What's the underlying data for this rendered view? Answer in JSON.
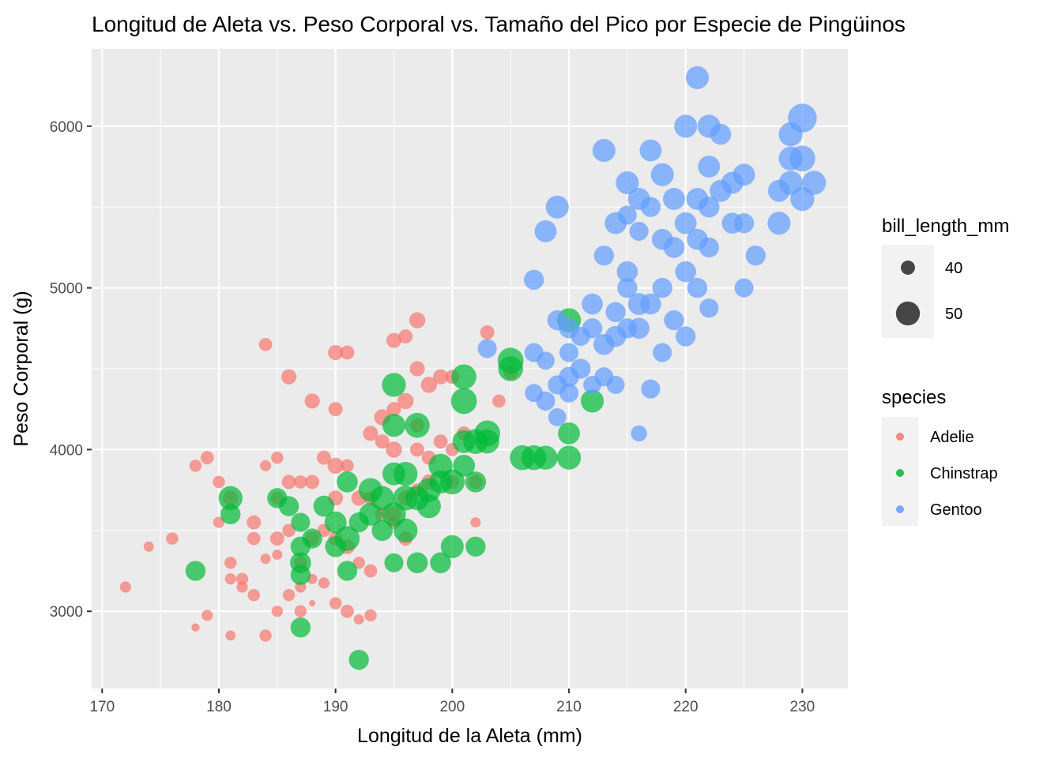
{
  "chart_data": {
    "type": "scatter",
    "title": "Longitud de Aleta vs. Peso Corporal vs. Tamaño del Pico por Especie de Pingüinos",
    "xlabel": "Longitud de la Aleta (mm)",
    "ylabel": "Peso Corporal (g)",
    "xlim": [
      169.1,
      233.9
    ],
    "ylim": [
      2522.5,
      6477.5
    ],
    "xticks": [
      170,
      180,
      190,
      200,
      210,
      220,
      230
    ],
    "yticks": [
      3000,
      4000,
      5000,
      6000
    ],
    "grid": true,
    "size_legend": {
      "title": "bill_length_mm",
      "entries": [
        {
          "label": "40",
          "value": 40
        },
        {
          "label": "50",
          "value": 50
        }
      ]
    },
    "color_legend": {
      "title": "species",
      "entries": [
        {
          "label": "Adelie",
          "color": "#F8766D"
        },
        {
          "label": "Chinstrap",
          "color": "#00BA38"
        },
        {
          "label": "Gentoo",
          "color": "#619CFF"
        }
      ]
    },
    "series": [
      {
        "name": "Adelie",
        "color": "#F8766D",
        "points": [
          [
            172,
            3150,
            37
          ],
          [
            174,
            3400,
            36
          ],
          [
            176,
            3450,
            38
          ],
          [
            178,
            3900,
            38
          ],
          [
            179,
            3950,
            39
          ],
          [
            178,
            2900,
            34
          ],
          [
            179,
            2975,
            37
          ],
          [
            180,
            3800,
            38
          ],
          [
            180,
            3550,
            37
          ],
          [
            181,
            3700,
            41
          ],
          [
            181,
            3300,
            38
          ],
          [
            181,
            3200,
            37
          ],
          [
            182,
            3200,
            38
          ],
          [
            182,
            3150,
            37
          ],
          [
            181,
            2850,
            36
          ],
          [
            183,
            3100,
            38
          ],
          [
            183,
            3450,
            39
          ],
          [
            183,
            3550,
            40
          ],
          [
            184,
            4650,
            39
          ],
          [
            184,
            3900,
            37
          ],
          [
            184,
            3325,
            36
          ],
          [
            184,
            2850,
            38
          ],
          [
            185,
            3950,
            38
          ],
          [
            185,
            3700,
            39
          ],
          [
            185,
            3450,
            40
          ],
          [
            185,
            3350,
            36
          ],
          [
            185,
            3000,
            37
          ],
          [
            186,
            4450,
            41
          ],
          [
            186,
            3100,
            38
          ],
          [
            186,
            3800,
            40
          ],
          [
            186,
            3500,
            39
          ],
          [
            187,
            3800,
            39
          ],
          [
            187,
            3300,
            39
          ],
          [
            187,
            3150,
            37
          ],
          [
            187,
            3000,
            38
          ],
          [
            188,
            4300,
            41
          ],
          [
            188,
            3800,
            40
          ],
          [
            188,
            3450,
            40
          ],
          [
            188,
            3200,
            36
          ],
          [
            188,
            3050,
            32
          ],
          [
            189,
            3950,
            40
          ],
          [
            189,
            3500,
            39
          ],
          [
            189,
            3175,
            37
          ],
          [
            190,
            4600,
            41
          ],
          [
            190,
            4250,
            40
          ],
          [
            190,
            3900,
            42
          ],
          [
            190,
            3700,
            41
          ],
          [
            190,
            3450,
            40
          ],
          [
            190,
            3050,
            38
          ],
          [
            191,
            4600,
            40
          ],
          [
            191,
            3900,
            39
          ],
          [
            191,
            3400,
            41
          ],
          [
            191,
            3000,
            39
          ],
          [
            192,
            3700,
            41
          ],
          [
            192,
            3300,
            38
          ],
          [
            192,
            2950,
            36
          ],
          [
            193,
            3700,
            40
          ],
          [
            193,
            3250,
            39
          ],
          [
            193,
            4100,
            41
          ],
          [
            193,
            2975,
            38
          ],
          [
            194,
            4200,
            42
          ],
          [
            194,
            4050,
            40
          ],
          [
            194,
            3600,
            40
          ],
          [
            195,
            4250,
            40
          ],
          [
            195,
            4000,
            42
          ],
          [
            195,
            3600,
            41
          ],
          [
            195,
            3550,
            39
          ],
          [
            195,
            4675,
            41
          ],
          [
            196,
            4300,
            42
          ],
          [
            196,
            3700,
            41
          ],
          [
            196,
            4700,
            40
          ],
          [
            196,
            3450,
            40
          ],
          [
            197,
            4800,
            42
          ],
          [
            197,
            4500,
            41
          ],
          [
            197,
            4150,
            40
          ],
          [
            197,
            3750,
            39
          ],
          [
            197,
            4000,
            40
          ],
          [
            198,
            3800,
            41
          ],
          [
            198,
            4400,
            42
          ],
          [
            198,
            3950,
            40
          ],
          [
            199,
            4450,
            41
          ],
          [
            199,
            4050,
            40
          ],
          [
            200,
            4450,
            40
          ],
          [
            200,
            4000,
            39
          ],
          [
            200,
            3800,
            40
          ],
          [
            201,
            4100,
            40
          ],
          [
            202,
            3550,
            36
          ],
          [
            202,
            3800,
            40
          ],
          [
            203,
            4725,
            40
          ],
          [
            204,
            4300,
            39
          ],
          [
            205,
            4475,
            40
          ]
        ]
      },
      {
        "name": "Chinstrap",
        "color": "#00BA38",
        "points": [
          [
            178,
            3250,
            46
          ],
          [
            181,
            3700,
            50
          ],
          [
            181,
            3600,
            46
          ],
          [
            185,
            3700,
            46
          ],
          [
            186,
            3650,
            46
          ],
          [
            187,
            3300,
            47
          ],
          [
            187,
            3225,
            46
          ],
          [
            187,
            3400,
            46
          ],
          [
            187,
            2900,
            46
          ],
          [
            187,
            3550,
            45
          ],
          [
            188,
            3450,
            46
          ],
          [
            189,
            3650,
            47
          ],
          [
            190,
            3550,
            48
          ],
          [
            190,
            3400,
            47
          ],
          [
            191,
            3450,
            51
          ],
          [
            191,
            3250,
            46
          ],
          [
            191,
            3800,
            47
          ],
          [
            192,
            3550,
            46
          ],
          [
            192,
            2700,
            46
          ],
          [
            193,
            3750,
            50
          ],
          [
            193,
            3600,
            49
          ],
          [
            194,
            3700,
            50
          ],
          [
            194,
            3500,
            47
          ],
          [
            195,
            4400,
            50
          ],
          [
            195,
            4150,
            49
          ],
          [
            195,
            3300,
            45
          ],
          [
            195,
            3600,
            50
          ],
          [
            195,
            3850,
            49
          ],
          [
            196,
            3850,
            50
          ],
          [
            196,
            3700,
            51
          ],
          [
            196,
            3500,
            50
          ],
          [
            197,
            4150,
            51
          ],
          [
            197,
            3300,
            47
          ],
          [
            197,
            3700,
            50
          ],
          [
            198,
            3750,
            50
          ],
          [
            198,
            3650,
            50
          ],
          [
            199,
            3800,
            49
          ],
          [
            199,
            3900,
            50
          ],
          [
            199,
            3300,
            47
          ],
          [
            200,
            3400,
            49
          ],
          [
            200,
            3800,
            51
          ],
          [
            201,
            4450,
            51
          ],
          [
            201,
            4300,
            52
          ],
          [
            201,
            4050,
            49
          ],
          [
            201,
            3900,
            48
          ],
          [
            202,
            4050,
            51
          ],
          [
            202,
            3800,
            47
          ],
          [
            202,
            3400,
            46
          ],
          [
            203,
            4100,
            52
          ],
          [
            203,
            4050,
            50
          ],
          [
            205,
            4550,
            52
          ],
          [
            205,
            4500,
            51
          ],
          [
            206,
            3950,
            51
          ],
          [
            207,
            3950,
            51
          ],
          [
            208,
            3950,
            50
          ],
          [
            210,
            4800,
            50
          ],
          [
            210,
            4100,
            48
          ],
          [
            210,
            3950,
            50
          ],
          [
            212,
            4300,
            49
          ]
        ]
      },
      {
        "name": "Gentoo",
        "color": "#619CFF",
        "points": [
          [
            203,
            4625,
            45
          ],
          [
            207,
            4600,
            45
          ],
          [
            207,
            4350,
            44
          ],
          [
            207,
            5050,
            46
          ],
          [
            208,
            5350,
            48
          ],
          [
            208,
            4550,
            44
          ],
          [
            208,
            4300,
            45
          ],
          [
            209,
            5500,
            49
          ],
          [
            209,
            4800,
            46
          ],
          [
            209,
            4400,
            45
          ],
          [
            209,
            4200,
            44
          ],
          [
            210,
            4750,
            46
          ],
          [
            210,
            4600,
            45
          ],
          [
            210,
            4450,
            46
          ],
          [
            210,
            4350,
            45
          ],
          [
            211,
            4700,
            45
          ],
          [
            211,
            4500,
            46
          ],
          [
            212,
            4900,
            47
          ],
          [
            212,
            4750,
            46
          ],
          [
            212,
            4400,
            44
          ],
          [
            213,
            5850,
            49
          ],
          [
            213,
            5200,
            46
          ],
          [
            213,
            4650,
            47
          ],
          [
            213,
            4450,
            45
          ],
          [
            214,
            5400,
            48
          ],
          [
            214,
            4850,
            46
          ],
          [
            214,
            4700,
            47
          ],
          [
            214,
            4400,
            44
          ],
          [
            215,
            5650,
            49
          ],
          [
            215,
            5100,
            47
          ],
          [
            215,
            5000,
            46
          ],
          [
            215,
            4750,
            46
          ],
          [
            215,
            5450,
            45
          ],
          [
            216,
            5550,
            48
          ],
          [
            216,
            5350,
            45
          ],
          [
            216,
            4750,
            47
          ],
          [
            216,
            4900,
            48
          ],
          [
            216,
            4100,
            42
          ],
          [
            217,
            5850,
            48
          ],
          [
            217,
            5500,
            46
          ],
          [
            217,
            4900,
            47
          ],
          [
            217,
            4375,
            45
          ],
          [
            218,
            5700,
            49
          ],
          [
            218,
            5300,
            47
          ],
          [
            218,
            5000,
            46
          ],
          [
            218,
            4600,
            45
          ],
          [
            219,
            5550,
            48
          ],
          [
            219,
            5250,
            47
          ],
          [
            219,
            4800,
            46
          ],
          [
            220,
            6000,
            49
          ],
          [
            220,
            5400,
            48
          ],
          [
            220,
            5100,
            47
          ],
          [
            220,
            4700,
            46
          ],
          [
            221,
            6300,
            49
          ],
          [
            221,
            5550,
            48
          ],
          [
            221,
            5300,
            47
          ],
          [
            221,
            5000,
            46
          ],
          [
            222,
            6000,
            49
          ],
          [
            222,
            5750,
            48
          ],
          [
            222,
            5500,
            47
          ],
          [
            222,
            5250,
            46
          ],
          [
            222,
            4875,
            45
          ],
          [
            223,
            5950,
            47
          ],
          [
            223,
            5600,
            48
          ],
          [
            224,
            5650,
            48
          ],
          [
            224,
            5400,
            47
          ],
          [
            225,
            5700,
            48
          ],
          [
            225,
            5400,
            46
          ],
          [
            225,
            5000,
            45
          ],
          [
            226,
            5200,
            46
          ],
          [
            228,
            5600,
            48
          ],
          [
            228,
            5400,
            49
          ],
          [
            229,
            5950,
            50
          ],
          [
            229,
            5800,
            50
          ],
          [
            229,
            5650,
            50
          ],
          [
            230,
            6050,
            55
          ],
          [
            230,
            5800,
            52
          ],
          [
            230,
            5550,
            50
          ],
          [
            231,
            5650,
            50
          ]
        ]
      }
    ]
  }
}
